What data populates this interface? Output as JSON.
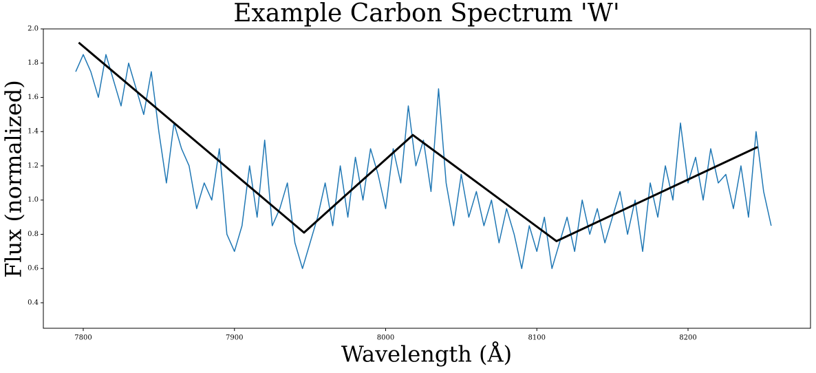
{
  "chart_data": {
    "type": "line",
    "title": "Example Carbon Spectrum 'W'",
    "xlabel": "Wavelength (Å)",
    "ylabel": "Flux (normalized)",
    "xlim": [
      7773.6,
      8281
    ],
    "ylim": [
      0.251,
      2.0
    ],
    "xticks": [
      7800,
      7900,
      8000,
      8100,
      8200
    ],
    "yticks": [
      0.4,
      0.6,
      0.8,
      {
        "value": 1,
        "label": "1.0"
      },
      1.2,
      1.4,
      1.6,
      1.8,
      {
        "value": 2,
        "label": "2.0"
      }
    ],
    "grid": false,
    "series": [
      {
        "color": "#1f77b4",
        "width": 1.5,
        "x": [
          7795,
          7800,
          7805,
          7810,
          7815,
          7820,
          7825,
          7830,
          7835,
          7840,
          7845,
          7850,
          7855,
          7860,
          7865,
          7870,
          7875,
          7880,
          7885,
          7890,
          7895,
          7900,
          7905,
          7910,
          7915,
          7920,
          7925,
          7930,
          7935,
          7940,
          7945,
          7950,
          7955,
          7960,
          7965,
          7970,
          7975,
          7980,
          7985,
          7990,
          7995,
          8000,
          8005,
          8010,
          8015,
          8020,
          8025,
          8030,
          8035,
          8040,
          8045,
          8050,
          8055,
          8060,
          8065,
          8070,
          8075,
          8080,
          8085,
          8090,
          8095,
          8100,
          8105,
          8110,
          8115,
          8120,
          8125,
          8130,
          8135,
          8140,
          8145,
          8150,
          8155,
          8160,
          8165,
          8170,
          8175,
          8180,
          8185,
          8190,
          8195,
          8200,
          8205,
          8210,
          8215,
          8220,
          8225,
          8230,
          8235,
          8240,
          8245,
          8250,
          8255
        ],
        "values": [
          1.75,
          1.85,
          1.75,
          1.6,
          1.85,
          1.7,
          1.55,
          1.8,
          1.65,
          1.5,
          1.75,
          1.4,
          1.1,
          1.45,
          1.3,
          1.2,
          0.95,
          1.1,
          1.0,
          1.3,
          0.8,
          0.7,
          0.85,
          1.2,
          0.9,
          1.35,
          0.85,
          0.95,
          1.1,
          0.75,
          0.6,
          0.75,
          0.9,
          1.1,
          0.85,
          1.2,
          0.9,
          1.25,
          1.0,
          1.3,
          1.15,
          0.95,
          1.3,
          1.1,
          1.55,
          1.2,
          1.35,
          1.05,
          1.65,
          1.1,
          0.85,
          1.15,
          0.9,
          1.05,
          0.85,
          1.0,
          0.75,
          0.95,
          0.8,
          0.6,
          0.85,
          0.7,
          0.9,
          0.6,
          0.75,
          0.9,
          0.7,
          1.0,
          0.8,
          0.95,
          0.75,
          0.9,
          1.05,
          0.8,
          1.0,
          0.7,
          1.1,
          0.9,
          1.2,
          1.0,
          1.45,
          1.1,
          1.25,
          1.0,
          1.3,
          1.1,
          1.15,
          0.95,
          1.2,
          0.9,
          1.4,
          1.05,
          0.85
        ]
      },
      {
        "color": "#000000",
        "width": 3,
        "x": [
          7797,
          7946,
          8018,
          8113,
          8246
        ],
        "values": [
          1.92,
          0.81,
          1.38,
          0.76,
          1.31
        ]
      }
    ]
  }
}
